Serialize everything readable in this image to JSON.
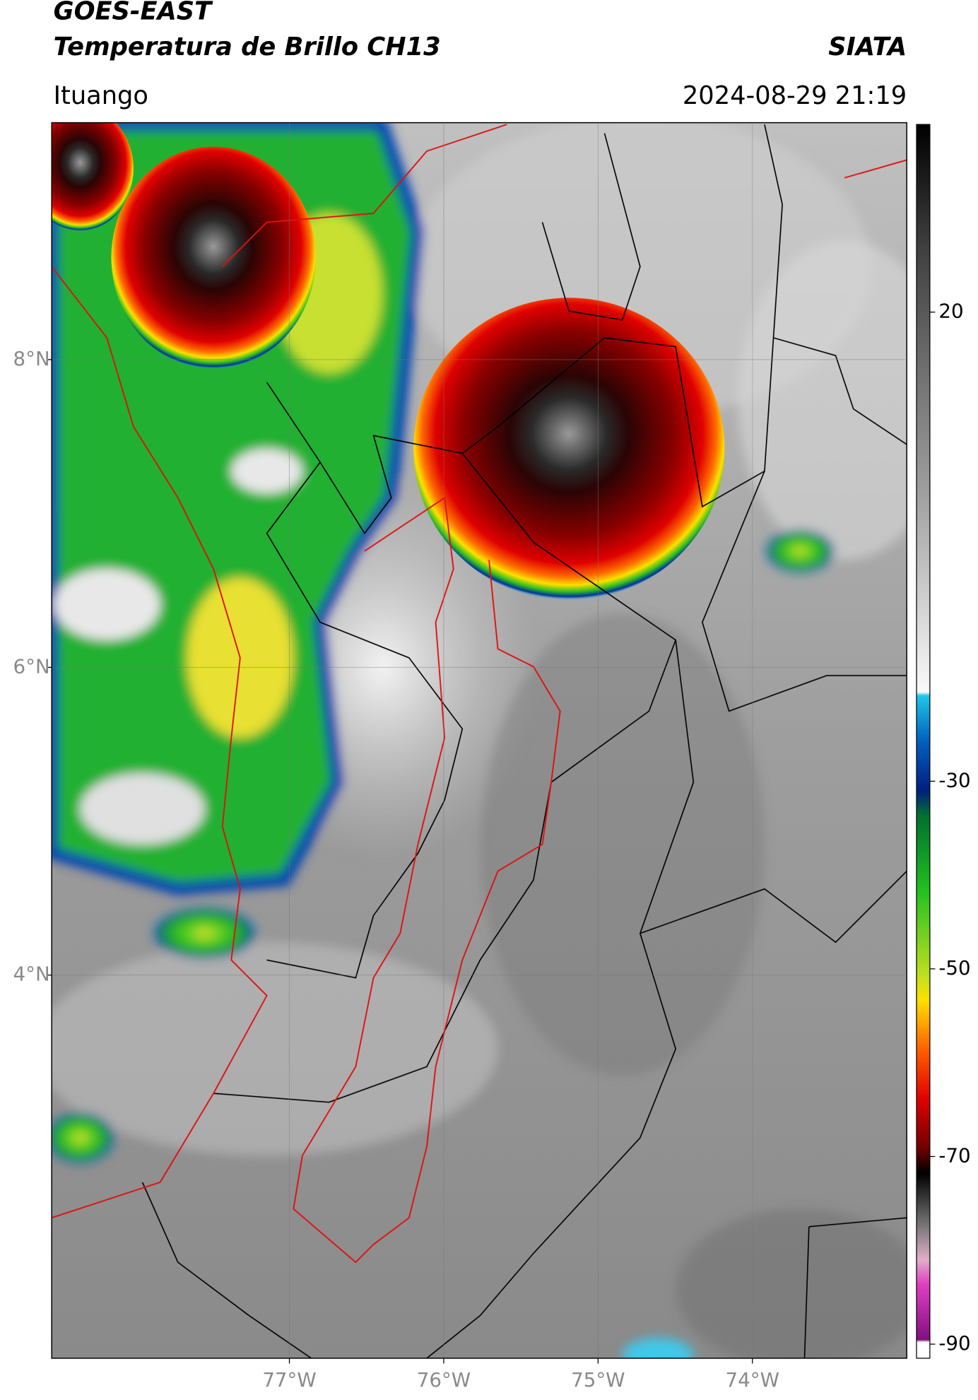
{
  "chart_data": {
    "type": "map",
    "title": "GOES-EAST",
    "subtitle": "Temperatura de Brillo CH13",
    "source": "SIATA",
    "location": "Ituango",
    "timestamp": "2024-08-29 21:19",
    "xlim": [
      -78.54,
      -73.0
    ],
    "ylim": [
      1.51,
      9.54
    ],
    "xticks": [
      {
        "value": -77,
        "label": "77°W"
      },
      {
        "value": -76,
        "label": "76°W"
      },
      {
        "value": -75,
        "label": "75°W"
      },
      {
        "value": -74,
        "label": "74°W"
      }
    ],
    "yticks": [
      {
        "value": 4,
        "label": "4°N"
      },
      {
        "value": 6,
        "label": "6°N"
      },
      {
        "value": 8,
        "label": "8°N"
      }
    ],
    "grid": true,
    "clim": [
      -91.5,
      40
    ],
    "cticks": [
      20,
      -30,
      -50,
      -70,
      -90
    ]
  }
}
